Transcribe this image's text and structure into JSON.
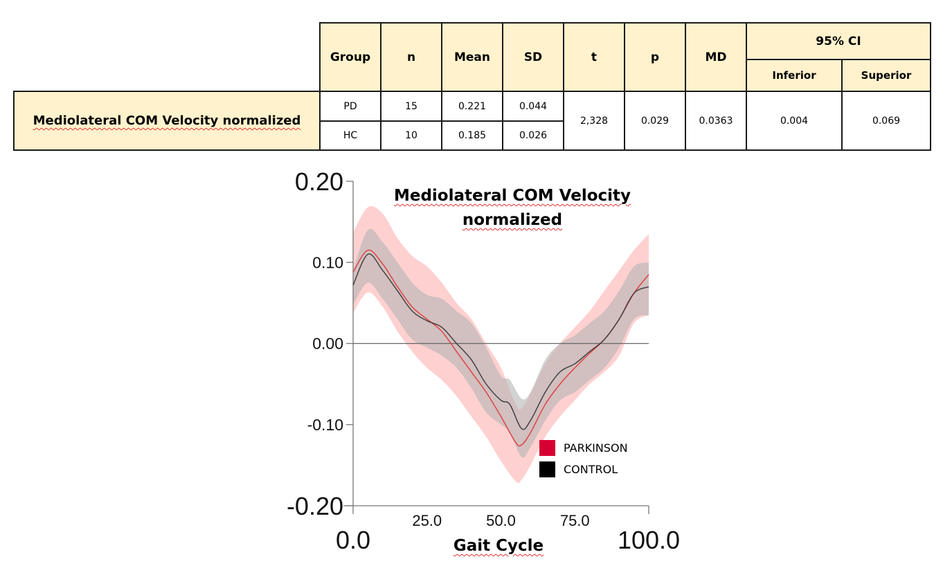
{
  "table": {
    "header": {
      "group": "Group",
      "n": "n",
      "mean": "Mean",
      "sd": "SD",
      "t": "t",
      "p": "p",
      "md": "MD",
      "ci": "95% CI",
      "ci_inferior": "Inferior",
      "ci_superior": "Superior"
    },
    "row_label": "Mediolateral COM Velocity normalized",
    "rows": [
      {
        "group": "PD",
        "n": "15",
        "mean": "0.221",
        "sd": "0.044"
      },
      {
        "group": "HC",
        "n": "10",
        "mean": "0.185",
        "sd": "0.026"
      }
    ],
    "shared": {
      "t": "2,328",
      "p": "0.029",
      "md": "0.0363",
      "ci_inferior": "0.004",
      "ci_superior": "0.069"
    }
  },
  "chart_data": {
    "type": "line",
    "title": "Mediolateral COM Velocity normalized",
    "title_lines": [
      "Mediolateral COM Velocity",
      "normalized"
    ],
    "xlabel": "Gait Cycle",
    "ylabel": "",
    "xlim": [
      0,
      100
    ],
    "ylim": [
      -0.2,
      0.2
    ],
    "x_ticks": [
      {
        "value": 0,
        "label": "0.0",
        "major": true
      },
      {
        "value": 25,
        "label": "25.0",
        "major": false
      },
      {
        "value": 50,
        "label": "50.0",
        "major": false
      },
      {
        "value": 75,
        "label": "75.0",
        "major": false
      },
      {
        "value": 100,
        "label": "100.0",
        "major": true
      }
    ],
    "y_ticks": [
      {
        "value": 0.2,
        "label": "0.20",
        "major": true
      },
      {
        "value": 0.1,
        "label": "0.10",
        "major": false
      },
      {
        "value": 0.0,
        "label": "0.00",
        "major": false
      },
      {
        "value": -0.1,
        "label": "-0.10",
        "major": false
      },
      {
        "value": -0.2,
        "label": "-0.20",
        "major": true
      }
    ],
    "zero_line": true,
    "grid": false,
    "legend_position": "bottom-right",
    "series": [
      {
        "name": "PARKINSON",
        "color": "#e03c3c",
        "band_color": "#ffc8c8",
        "legend_color": "#d80032",
        "x": [
          0,
          5,
          10,
          15,
          20,
          25,
          30,
          35,
          40,
          45,
          50,
          55,
          57,
          60,
          65,
          70,
          75,
          80,
          85,
          90,
          95,
          100
        ],
        "mean": [
          0.088,
          0.115,
          0.098,
          0.07,
          0.045,
          0.03,
          0.015,
          -0.01,
          -0.035,
          -0.06,
          -0.09,
          -0.122,
          -0.125,
          -0.11,
          -0.075,
          -0.05,
          -0.03,
          -0.012,
          0.005,
          0.03,
          0.062,
          0.085
        ],
        "upper": [
          0.137,
          0.168,
          0.16,
          0.13,
          0.108,
          0.095,
          0.075,
          0.05,
          0.03,
          0.0,
          -0.03,
          -0.075,
          -0.08,
          -0.062,
          -0.025,
          0.0,
          0.02,
          0.04,
          0.065,
          0.09,
          0.115,
          0.135
        ],
        "lower": [
          0.038,
          0.063,
          0.045,
          0.015,
          -0.01,
          -0.03,
          -0.045,
          -0.065,
          -0.09,
          -0.115,
          -0.145,
          -0.17,
          -0.168,
          -0.15,
          -0.115,
          -0.09,
          -0.07,
          -0.05,
          -0.035,
          -0.015,
          0.025,
          0.035
        ]
      },
      {
        "name": "CONTROL",
        "color": "#3a3a3a",
        "band_color": "#b4b4b4",
        "legend_color": "#000000",
        "x": [
          0,
          5,
          10,
          15,
          20,
          25,
          30,
          35,
          40,
          45,
          50,
          53,
          57,
          60,
          65,
          70,
          75,
          80,
          85,
          90,
          95,
          100
        ],
        "mean": [
          0.072,
          0.11,
          0.09,
          0.065,
          0.04,
          0.028,
          0.02,
          0.0,
          -0.02,
          -0.05,
          -0.07,
          -0.075,
          -0.105,
          -0.095,
          -0.06,
          -0.035,
          -0.025,
          -0.01,
          0.005,
          0.03,
          0.062,
          0.07
        ],
        "upper": [
          0.09,
          0.14,
          0.125,
          0.1,
          0.075,
          0.06,
          0.055,
          0.04,
          0.025,
          -0.005,
          -0.04,
          -0.045,
          -0.068,
          -0.06,
          -0.02,
          0.0,
          0.01,
          0.025,
          0.04,
          0.065,
          0.095,
          0.1
        ],
        "lower": [
          0.048,
          0.075,
          0.055,
          0.03,
          0.005,
          -0.005,
          -0.015,
          -0.03,
          -0.055,
          -0.085,
          -0.1,
          -0.11,
          -0.14,
          -0.128,
          -0.095,
          -0.07,
          -0.06,
          -0.045,
          -0.03,
          -0.005,
          0.03,
          0.035
        ]
      }
    ]
  }
}
